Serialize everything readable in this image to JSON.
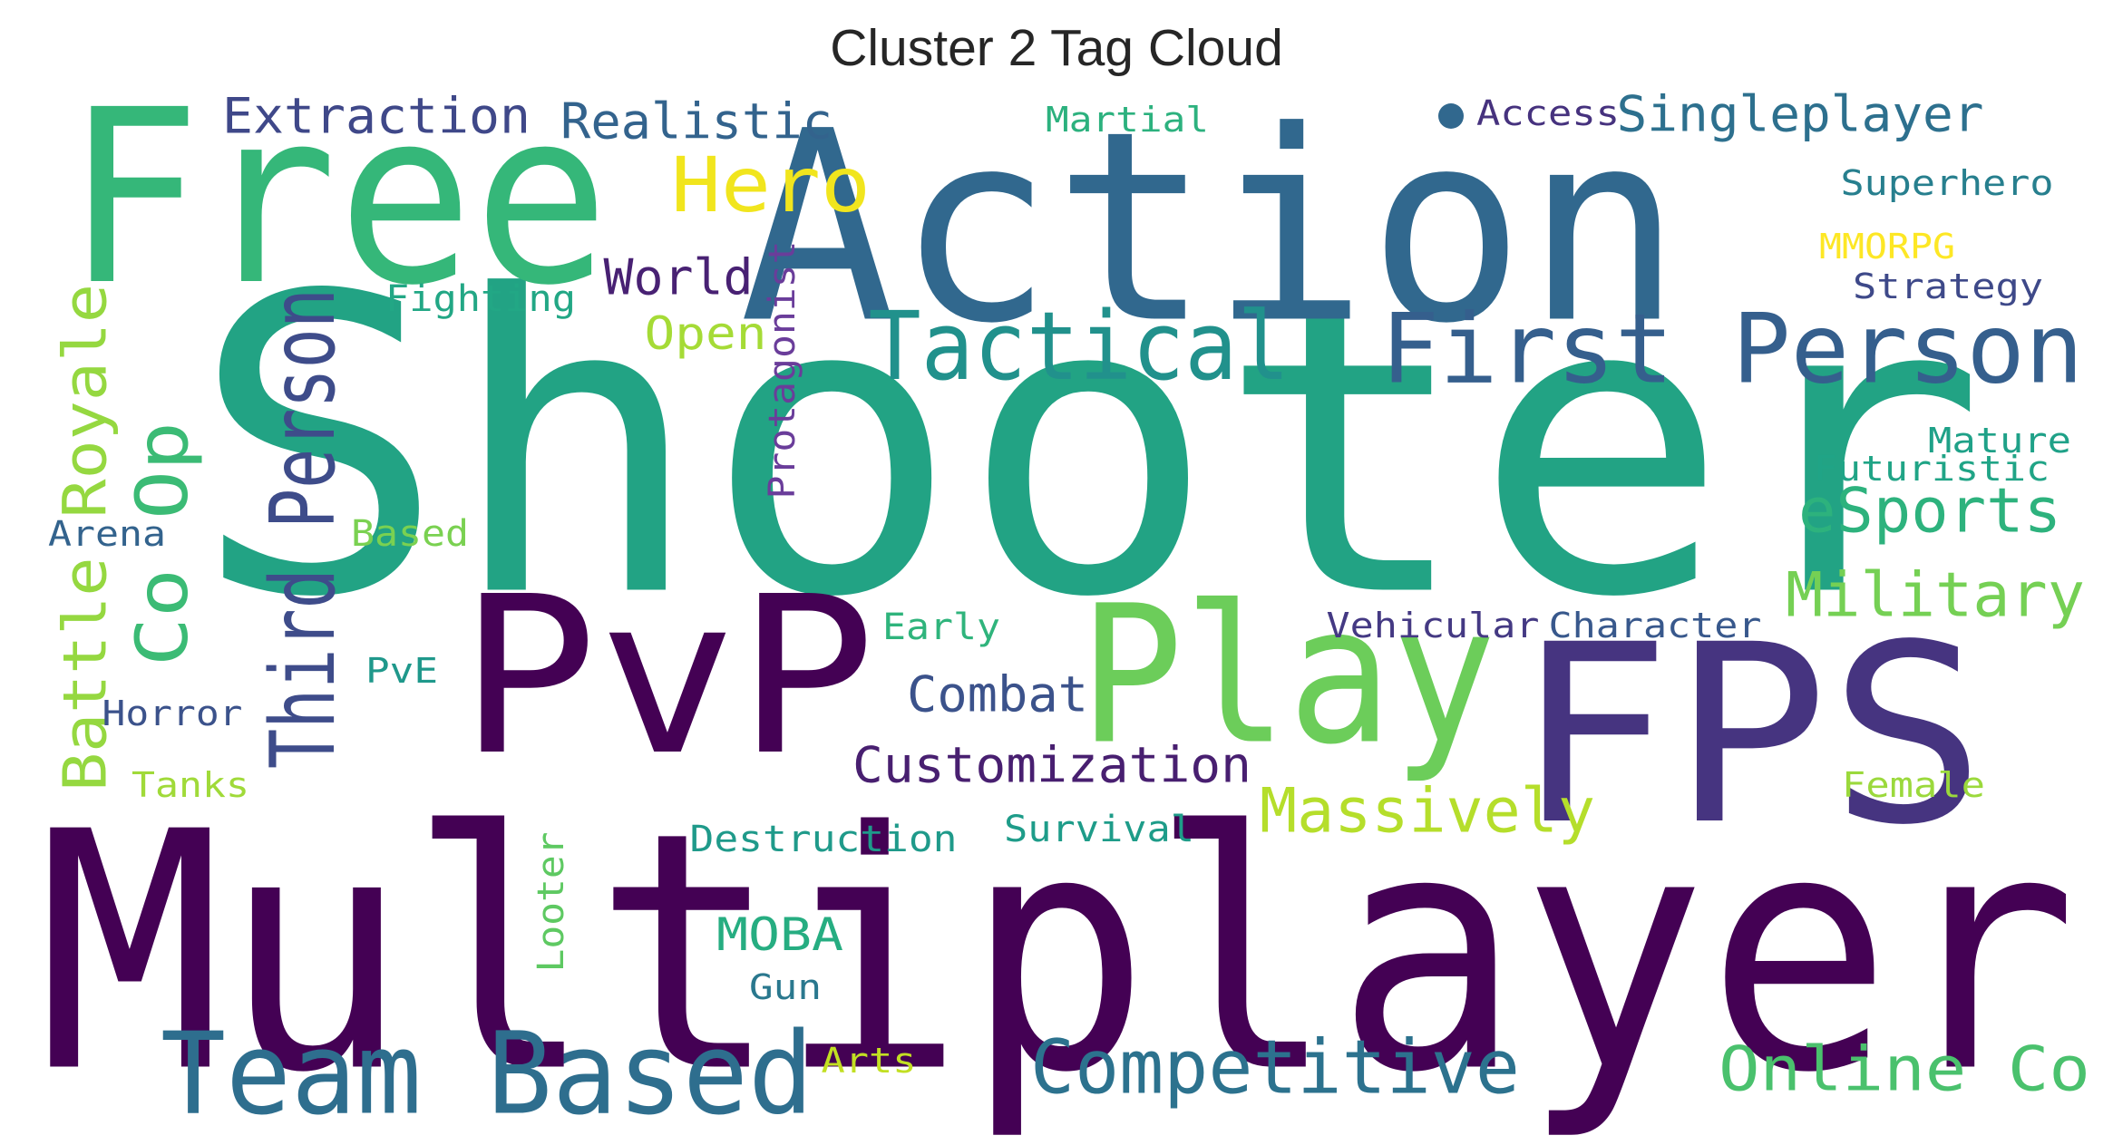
{
  "title": "Cluster 2 Tag Cloud",
  "words": [
    {
      "text": "Shooter",
      "color": "#22a384"
    },
    {
      "text": "Multiplayer",
      "color": "#440154"
    },
    {
      "text": "Action",
      "color": "#31688e"
    },
    {
      "text": "Free",
      "color": "#35b779"
    },
    {
      "text": "FPS",
      "color": "#463480"
    },
    {
      "text": "PvP",
      "color": "#440154"
    },
    {
      "text": "Play",
      "color": "#6ccd5a"
    },
    {
      "text": "Team Based",
      "color": "#2e6e8e"
    },
    {
      "text": "First Person",
      "color": "#355f8d"
    },
    {
      "text": "Tactical",
      "color": "#21918c"
    },
    {
      "text": "Competitive",
      "color": "#2c728e"
    },
    {
      "text": "Third Person",
      "color": "#3e4c8a"
    },
    {
      "text": "Battle Royale",
      "color": "#95d840"
    },
    {
      "text": "Co Op",
      "color": "#3bbb75"
    },
    {
      "text": "Online Co",
      "color": "#4ac16d"
    },
    {
      "text": "Military",
      "color": "#75d054"
    },
    {
      "text": "eSports",
      "color": "#2db27d"
    },
    {
      "text": "Massively",
      "color": "#b5de2b"
    },
    {
      "text": "Hero",
      "color": "#f1e51d"
    },
    {
      "text": "Customization",
      "color": "#481f70"
    },
    {
      "text": "Combat",
      "color": "#3b528b"
    },
    {
      "text": "Extraction",
      "color": "#3f4889"
    },
    {
      "text": "Realistic",
      "color": "#33638d"
    },
    {
      "text": "Singleplayer",
      "color": "#2d708e"
    },
    {
      "text": "World",
      "color": "#482173"
    },
    {
      "text": "Open",
      "color": "#a5db36"
    },
    {
      "text": "Protagonist",
      "color": "#6a3d9a"
    },
    {
      "text": "MOBA",
      "color": "#26ad81"
    },
    {
      "text": "Fighting",
      "color": "#22a785"
    },
    {
      "text": "Early",
      "color": "#2fb47c"
    },
    {
      "text": "Vehicular",
      "color": "#443983"
    },
    {
      "text": "Character",
      "color": "#38588c"
    },
    {
      "text": "Destruction",
      "color": "#1f9a8a"
    },
    {
      "text": "Survival",
      "color": "#1e9c89"
    },
    {
      "text": "Looter",
      "color": "#5ec962"
    },
    {
      "text": "Based",
      "color": "#7ad151"
    },
    {
      "text": "Arena",
      "color": "#33638d"
    },
    {
      "text": "Horror",
      "color": "#3b528b"
    },
    {
      "text": "Tanks",
      "color": "#a0da39"
    },
    {
      "text": "PvE",
      "color": "#1f988b"
    },
    {
      "text": "Gun",
      "color": "#2a788e"
    },
    {
      "text": "Arts",
      "color": "#c2df23"
    },
    {
      "text": "Martial",
      "color": "#2cb17e"
    },
    {
      "text": "Access",
      "color": "#46327e"
    },
    {
      "text": "Superhero",
      "color": "#277f8e"
    },
    {
      "text": "MMORPG",
      "color": "#fde725"
    },
    {
      "text": "Strategy",
      "color": "#3e4989"
    },
    {
      "text": "Mature",
      "color": "#1fa188"
    },
    {
      "text": "Futuristic",
      "color": "#20a486"
    },
    {
      "text": "Female",
      "color": "#9bd93c"
    }
  ]
}
